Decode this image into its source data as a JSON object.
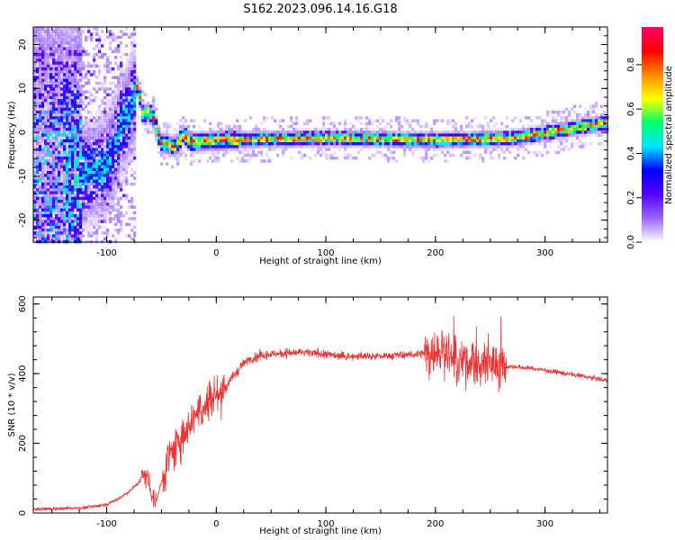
{
  "title": "S162.2023.096.14.16.G18",
  "chart_data": [
    {
      "type": "heatmap",
      "xlabel": "Height of straight line (km)",
      "ylabel": "Frequency (Hz)",
      "xlim": [
        -167,
        357
      ],
      "ylim": [
        -25,
        24
      ],
      "xticks": [
        -100,
        0,
        100,
        200,
        300
      ],
      "yticks": [
        -20,
        -10,
        0,
        10,
        20
      ],
      "colorbar": {
        "label": "Normalized spectral amplitude",
        "range": [
          0,
          0.97
        ],
        "ticks": [
          0.0,
          0.2,
          0.4,
          0.6,
          0.8
        ],
        "colors": [
          "#ffffff",
          "#9966ff",
          "#5500ff",
          "#0000ff",
          "#00e5ff",
          "#00ff66",
          "#ffff00",
          "#ff8800",
          "#ff0000",
          "#ff0066"
        ]
      },
      "ridge": [
        {
          "x": -120,
          "y": -9
        },
        {
          "x": -105,
          "y": -8
        },
        {
          "x": -95,
          "y": -4
        },
        {
          "x": -88,
          "y": 2
        },
        {
          "x": -83,
          "y": 4
        },
        {
          "x": -76,
          "y": 8
        },
        {
          "x": -73,
          "y": 11
        },
        {
          "x": -68,
          "y": 4
        },
        {
          "x": -62,
          "y": 5
        },
        {
          "x": -58,
          "y": 3
        },
        {
          "x": -52,
          "y": -2
        },
        {
          "x": -45,
          "y": -2.5
        },
        {
          "x": -38,
          "y": -3
        },
        {
          "x": -31,
          "y": 0
        },
        {
          "x": -25,
          "y": -2
        },
        {
          "x": 0,
          "y": -1.5
        },
        {
          "x": 50,
          "y": -1.2
        },
        {
          "x": 100,
          "y": -1
        },
        {
          "x": 150,
          "y": -1.2
        },
        {
          "x": 200,
          "y": -1.5
        },
        {
          "x": 270,
          "y": -1
        },
        {
          "x": 300,
          "y": 0.2
        },
        {
          "x": 330,
          "y": 1.5
        },
        {
          "x": 357,
          "y": 2.5
        }
      ]
    },
    {
      "type": "line",
      "xlabel": "Height of straight line (km)",
      "ylabel": "SNR (10 * v/v)",
      "xlim": [
        -167,
        357
      ],
      "ylim": [
        0,
        620
      ],
      "xticks": [
        -100,
        0,
        100,
        200,
        300
      ],
      "yticks": [
        0,
        200,
        400,
        600
      ],
      "color": "#ee3333",
      "series": [
        {
          "x": [
            -167,
            -150,
            -120,
            -100,
            -90,
            -80,
            -70,
            -65,
            -60,
            -55,
            -50,
            -45,
            -40,
            -35,
            -30,
            -25,
            -20,
            -15,
            -10,
            -5,
            0,
            5,
            10,
            15,
            20,
            25,
            30,
            40,
            50,
            60,
            80,
            100,
            120,
            150,
            180,
            200,
            210,
            220,
            230,
            240,
            250,
            260,
            270,
            290,
            310,
            330,
            357
          ],
          "y": [
            10,
            12,
            15,
            25,
            40,
            60,
            90,
            120,
            70,
            30,
            90,
            150,
            170,
            200,
            230,
            260,
            280,
            300,
            320,
            330,
            340,
            350,
            370,
            390,
            410,
            430,
            440,
            450,
            455,
            460,
            460,
            455,
            450,
            450,
            455,
            460,
            470,
            420,
            440,
            420,
            430,
            420,
            420,
            415,
            405,
            395,
            380
          ]
        }
      ]
    }
  ]
}
